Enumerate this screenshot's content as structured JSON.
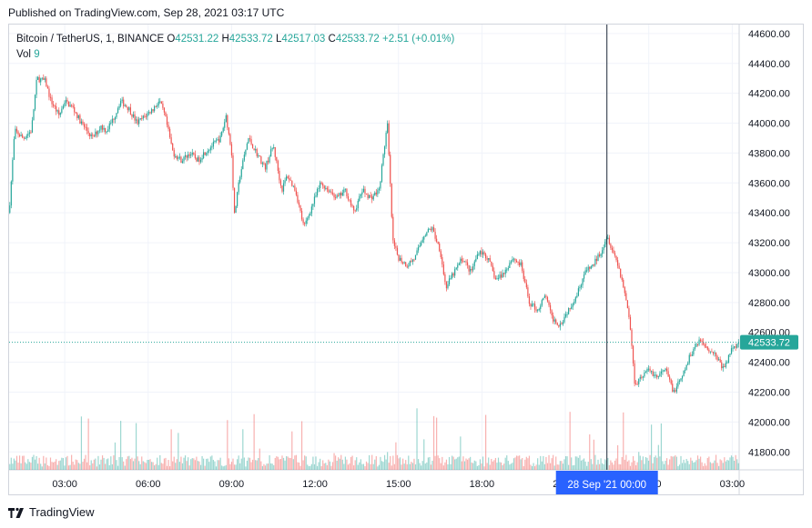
{
  "published": "Published on TradingView.com, Sep 28, 2021 03:17 UTC",
  "legend": {
    "symbol": "Bitcoin / TetherUS, 1, BINANCE",
    "o_label": "O",
    "o_value": "42531.22",
    "h_label": "H",
    "h_value": "42533.72",
    "l_label": "L",
    "l_value": "42517.03",
    "c_label": "C",
    "c_value": "42533.72",
    "change": "+2.51 (+0.01%)",
    "vol_label": "Vol",
    "vol_value": "9"
  },
  "footer": {
    "brand": "TradingView"
  },
  "colors": {
    "up": "#26a69a",
    "down": "#ef5350",
    "axis_text": "#131722",
    "grid": "#f0f3fa",
    "highlight": "#2962ff"
  },
  "chart_data": {
    "type": "candlestick",
    "symbol": "Bitcoin / TetherUS",
    "interval": "1",
    "exchange": "BINANCE",
    "ylim": [
      41680,
      44660
    ],
    "y_ticks": [
      "44600.00",
      "44400.00",
      "44200.00",
      "44000.00",
      "43800.00",
      "43600.00",
      "43400.00",
      "43200.00",
      "43000.00",
      "42800.00",
      "42600.00",
      "42400.00",
      "42200.00",
      "42000.00",
      "41800.00"
    ],
    "x_ticks": [
      "03:00",
      "06:00",
      "09:00",
      "12:00",
      "15:00",
      "18:00",
      "21:00",
      "00:00",
      "03:00"
    ],
    "x_ticks_hours": [
      3,
      6,
      9,
      12,
      15,
      18,
      21,
      24,
      27
    ],
    "x_range_hours": [
      1.0,
      27.25
    ],
    "crosshair_label": "28 Sep '21   00:00",
    "crosshair_hour": 24,
    "last_price": "42533.72",
    "last_price_value": 42533.72,
    "price_path": [
      [
        1.0,
        43400
      ],
      [
        1.2,
        43950
      ],
      [
        1.5,
        43900
      ],
      [
        1.8,
        43950
      ],
      [
        2.0,
        44300
      ],
      [
        2.3,
        44280
      ],
      [
        2.5,
        44150
      ],
      [
        2.8,
        44050
      ],
      [
        3.0,
        44150
      ],
      [
        3.3,
        44100
      ],
      [
        3.6,
        44000
      ],
      [
        3.8,
        43950
      ],
      [
        4.0,
        43900
      ],
      [
        4.3,
        43980
      ],
      [
        4.5,
        43950
      ],
      [
        4.8,
        44050
      ],
      [
        5.0,
        44150
      ],
      [
        5.3,
        44100
      ],
      [
        5.6,
        44000
      ],
      [
        5.9,
        44050
      ],
      [
        6.2,
        44100
      ],
      [
        6.4,
        44150
      ],
      [
        6.6,
        44050
      ],
      [
        6.9,
        43800
      ],
      [
        7.2,
        43750
      ],
      [
        7.5,
        43800
      ],
      [
        7.8,
        43750
      ],
      [
        8.0,
        43800
      ],
      [
        8.3,
        43850
      ],
      [
        8.6,
        43900
      ],
      [
        8.8,
        44050
      ],
      [
        9.0,
        43800
      ],
      [
        9.1,
        43380
      ],
      [
        9.3,
        43650
      ],
      [
        9.6,
        43900
      ],
      [
        9.9,
        43800
      ],
      [
        10.2,
        43700
      ],
      [
        10.5,
        43850
      ],
      [
        10.8,
        43550
      ],
      [
        11.0,
        43650
      ],
      [
        11.3,
        43550
      ],
      [
        11.6,
        43300
      ],
      [
        11.9,
        43450
      ],
      [
        12.2,
        43600
      ],
      [
        12.5,
        43550
      ],
      [
        12.8,
        43500
      ],
      [
        13.1,
        43550
      ],
      [
        13.4,
        43400
      ],
      [
        13.7,
        43550
      ],
      [
        14.0,
        43500
      ],
      [
        14.3,
        43550
      ],
      [
        14.6,
        44000
      ],
      [
        14.8,
        43200
      ],
      [
        15.0,
        43100
      ],
      [
        15.3,
        43050
      ],
      [
        15.6,
        43100
      ],
      [
        15.9,
        43250
      ],
      [
        16.2,
        43300
      ],
      [
        16.5,
        43150
      ],
      [
        16.7,
        42900
      ],
      [
        17.0,
        43000
      ],
      [
        17.3,
        43100
      ],
      [
        17.6,
        43000
      ],
      [
        17.9,
        43150
      ],
      [
        18.2,
        43100
      ],
      [
        18.5,
        42950
      ],
      [
        18.8,
        43000
      ],
      [
        19.1,
        43100
      ],
      [
        19.4,
        43050
      ],
      [
        19.7,
        42800
      ],
      [
        20.0,
        42750
      ],
      [
        20.3,
        42850
      ],
      [
        20.5,
        42700
      ],
      [
        20.8,
        42650
      ],
      [
        21.1,
        42750
      ],
      [
        21.4,
        42850
      ],
      [
        21.7,
        43000
      ],
      [
        22.0,
        43050
      ],
      [
        22.3,
        43150
      ],
      [
        22.5,
        43250
      ],
      [
        22.7,
        43150
      ],
      [
        22.9,
        43050
      ],
      [
        23.1,
        42900
      ],
      [
        23.3,
        42700
      ],
      [
        23.5,
        42250
      ],
      [
        23.7,
        42300
      ],
      [
        24.0,
        42350
      ],
      [
        24.3,
        42300
      ],
      [
        24.6,
        42350
      ],
      [
        24.9,
        42200
      ],
      [
        25.2,
        42300
      ],
      [
        25.5,
        42450
      ],
      [
        25.8,
        42550
      ],
      [
        26.1,
        42500
      ],
      [
        26.4,
        42450
      ],
      [
        26.7,
        42350
      ],
      [
        27.0,
        42500
      ],
      [
        27.25,
        42533.72
      ]
    ],
    "volume_ylim": [
      0,
      120
    ]
  }
}
